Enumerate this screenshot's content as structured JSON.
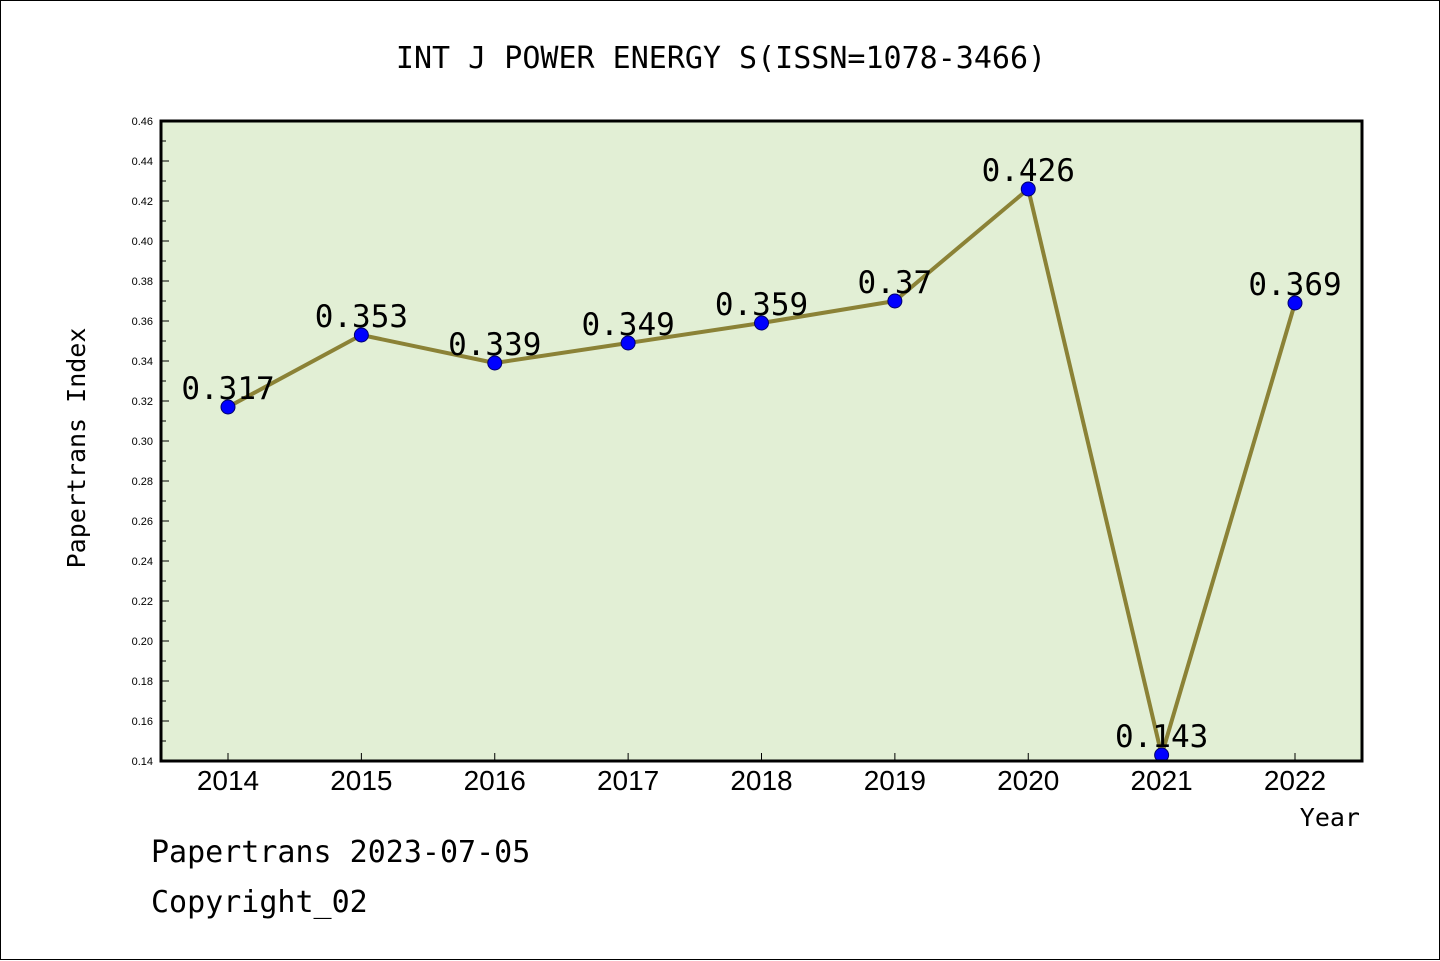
{
  "chart_data": {
    "type": "line",
    "title": "INT J POWER ENERGY S(ISSN=1078-3466)",
    "xlabel": "Year",
    "ylabel": "Papertrans Index",
    "categories": [
      "2014",
      "2015",
      "2016",
      "2017",
      "2018",
      "2019",
      "2020",
      "2021",
      "2022"
    ],
    "series": [
      {
        "values": [
          0.317,
          0.353,
          0.339,
          0.349,
          0.359,
          0.37,
          0.426,
          0.143,
          0.369
        ],
        "data_labels": [
          "0.317",
          "0.353",
          "0.339",
          "0.349",
          "0.359",
          "0.37",
          "0.426",
          "0.143",
          "0.369"
        ]
      }
    ],
    "ylim": [
      0.14,
      0.46
    ],
    "yticks": [
      "0.14",
      "0.16",
      "0.18",
      "0.20",
      "0.22",
      "0.24",
      "0.26",
      "0.28",
      "0.30",
      "0.32",
      "0.34",
      "0.36",
      "0.38",
      "0.40",
      "0.42",
      "0.44",
      "0.46"
    ],
    "grid": false,
    "colors": {
      "plot_background": "#e2efd5",
      "line": "#8b8236",
      "marker": "#0000ff"
    }
  },
  "footer": {
    "source_line": "Papertrans 2023-07-05",
    "copyright_line": "Copyright_02"
  }
}
